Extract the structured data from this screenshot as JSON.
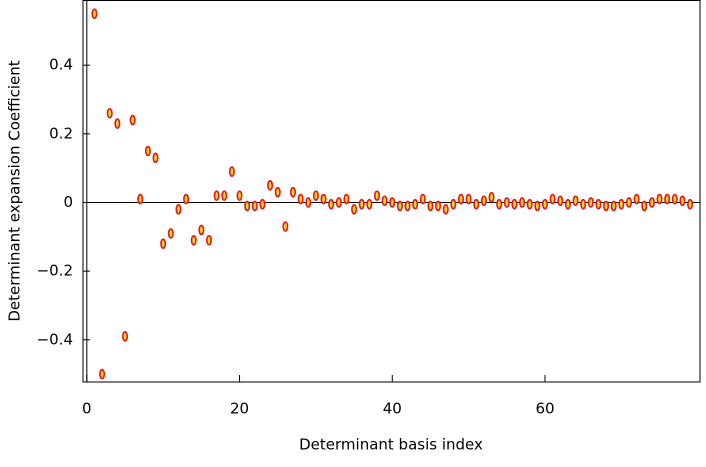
{
  "chart_data": {
    "type": "scatter",
    "x_label": "Determinant basis index",
    "y_label": "Determinant expansion Coefficient",
    "x": [
      1,
      2,
      3,
      4,
      5,
      6,
      7,
      8,
      9,
      10,
      11,
      12,
      13,
      14,
      15,
      16,
      17,
      18,
      19,
      20,
      21,
      22,
      23,
      24,
      25,
      26,
      27,
      28,
      29,
      30,
      31,
      32,
      33,
      34,
      35,
      36,
      37,
      38,
      39,
      40,
      41,
      42,
      43,
      44,
      45,
      46,
      47,
      48,
      49,
      50,
      51,
      52,
      53,
      54,
      55,
      56,
      57,
      58,
      59,
      60,
      61,
      62,
      63,
      64,
      65,
      66,
      67,
      68,
      69,
      70,
      71,
      72,
      73,
      74,
      75,
      76,
      77,
      78,
      79
    ],
    "values": [
      0.55,
      -0.5,
      0.26,
      0.23,
      -0.39,
      0.24,
      0.01,
      0.15,
      0.13,
      -0.12,
      -0.09,
      -0.02,
      0.01,
      -0.11,
      -0.08,
      -0.11,
      0.02,
      0.02,
      0.09,
      0.02,
      -0.01,
      -0.01,
      -0.005,
      0.05,
      0.03,
      -0.07,
      0.03,
      0.01,
      0.0,
      0.02,
      0.01,
      -0.005,
      0.0,
      0.01,
      -0.02,
      -0.005,
      -0.005,
      0.02,
      0.005,
      0.0,
      -0.01,
      -0.01,
      -0.005,
      0.01,
      -0.01,
      -0.01,
      -0.02,
      -0.005,
      0.01,
      0.01,
      -0.005,
      0.005,
      0.015,
      -0.005,
      0.0,
      -0.005,
      0.0,
      -0.005,
      -0.01,
      -0.005,
      0.01,
      0.005,
      -0.005,
      0.005,
      -0.005,
      0.0,
      -0.005,
      -0.01,
      -0.01,
      -0.005,
      0.0,
      0.01,
      -0.01,
      0.0,
      0.01,
      0.01,
      0.01,
      0.005,
      -0.005
    ],
    "color": "#e8141c",
    "marker_fill": "#d8e020",
    "xlim": [
      -0.5,
      80.3
    ],
    "ylim": [
      -0.523,
      0.587
    ],
    "xticks": [
      0,
      20,
      40,
      60
    ],
    "yticks": [
      {
        "value": -0.4,
        "label": "−0.4"
      },
      {
        "value": -0.2,
        "label": "−0.2"
      },
      0,
      0.2,
      0.4
    ]
  }
}
